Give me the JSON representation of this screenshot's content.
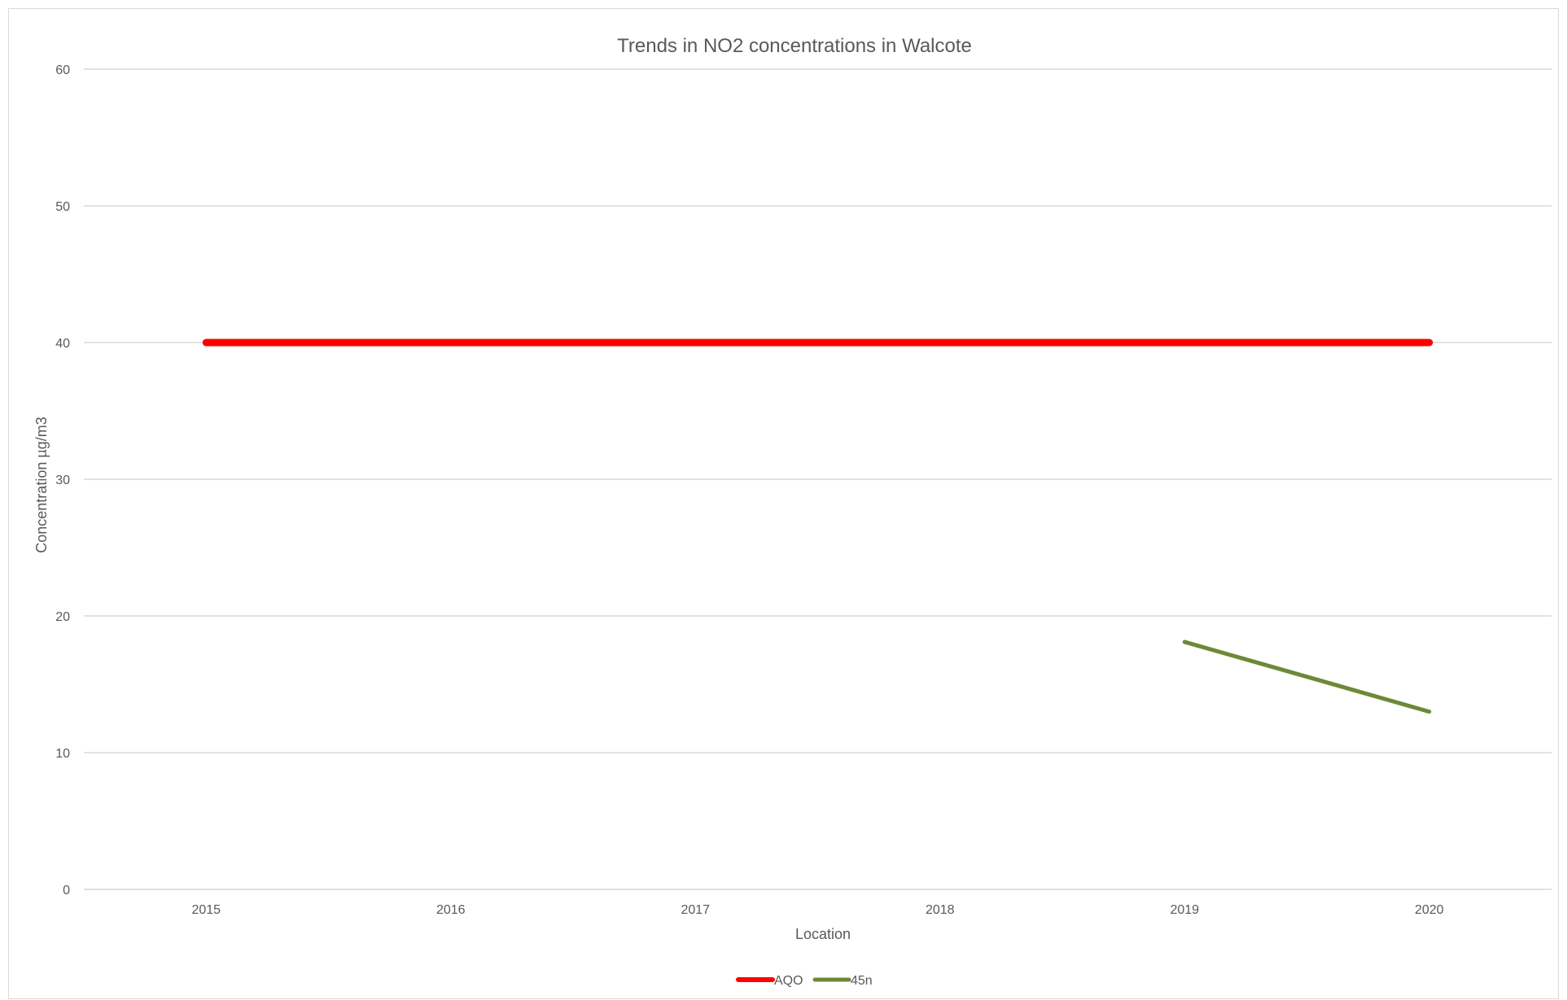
{
  "chart_data": {
    "type": "line",
    "title": "Trends in NO2 concentrations in Walcote",
    "xlabel": "Location",
    "ylabel": "Concentration µg/m3",
    "categories": [
      "2015",
      "2016",
      "2017",
      "2018",
      "2019",
      "2020"
    ],
    "ylim": [
      0,
      60
    ],
    "yticks": [
      0,
      10,
      20,
      30,
      40,
      50,
      60
    ],
    "grid": true,
    "legend_position": "bottom",
    "series": [
      {
        "name": "AQO",
        "color": "#ff0000",
        "values": [
          40,
          40,
          40,
          40,
          40,
          40
        ]
      },
      {
        "name": "45n",
        "color": "#6b8a35",
        "values": [
          null,
          null,
          null,
          null,
          18.1,
          13
        ]
      }
    ]
  }
}
